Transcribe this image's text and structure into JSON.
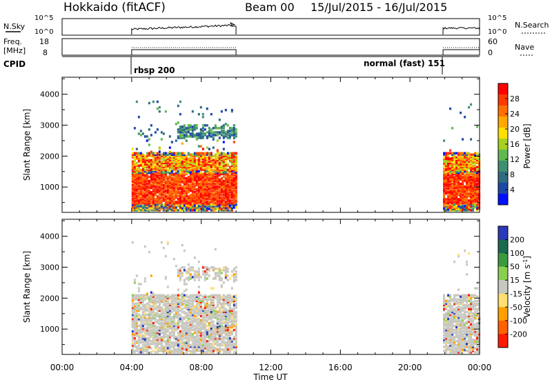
{
  "header": {
    "title": "Hokkaido (fitACF)",
    "beam": "Beam 00",
    "dates": "15/Jul/2015 - 16/Jul/2015"
  },
  "top_panels": {
    "nsky_label": "N.Sky",
    "nsky_ticks": [
      "10^5",
      "10^0"
    ],
    "nsearch_label": "N.Search",
    "nsearch_ticks": [
      "10^5",
      "10^0"
    ],
    "freq_label_1": "Freq.",
    "freq_label_2": "[MHz]",
    "freq_ticks": [
      "18",
      "8"
    ],
    "nave_label": "Nave",
    "nave_ticks": [
      "60",
      "0"
    ],
    "cpid_label": "CPID",
    "cpid_1": "rbsp 200",
    "cpid_2": "normal (fast) 151"
  },
  "chart_data": [
    {
      "type": "heatmap",
      "title": "",
      "ylabel": "Slant Range [km]",
      "xlabel": "",
      "yticks": [
        1000,
        2000,
        3000,
        4000
      ],
      "ylim": [
        180,
        4550
      ],
      "xlim": [
        0,
        24
      ],
      "colorbar_label": "Power [dB]",
      "colorbar_ticks": [
        "28",
        "24",
        "20",
        "16",
        "12",
        "8",
        "4"
      ],
      "colorbar_colors": [
        "#ff0000",
        "#ff3a00",
        "#ff7000",
        "#ffa800",
        "#ffe000",
        "#a8d020",
        "#60b850",
        "#3e9070",
        "#2e6c80",
        "#1c48a8",
        "#0010ff"
      ],
      "data_windows_hours": [
        [
          4.0,
          10.0
        ],
        [
          21.9,
          24.0
        ]
      ],
      "grid": false
    },
    {
      "type": "heatmap",
      "title": "",
      "ylabel": "Slant Range [km]",
      "xlabel": "Time UT",
      "yticks": [
        1000,
        2000,
        3000,
        4000
      ],
      "ylim": [
        180,
        4550
      ],
      "xlim": [
        0,
        24
      ],
      "xtick_labels": [
        "00:00",
        "04:00",
        "08:00",
        "12:00",
        "16:00",
        "20:00",
        "00:00"
      ],
      "colorbar_label": "Velocity [m s^-1]",
      "colorbar_ticks": [
        "200",
        "100",
        "50",
        "15",
        "-15",
        "-50",
        "-100",
        "-200"
      ],
      "colorbar_colors": [
        "#2a3ab8",
        "#1a6a50",
        "#3a9a40",
        "#8ad050",
        "#c8c8c0",
        "#ffe070",
        "#ffa000",
        "#ff6000",
        "#ff1a00"
      ],
      "data_windows_hours": [
        [
          4.0,
          10.0
        ],
        [
          21.9,
          24.0
        ]
      ],
      "grid": false
    }
  ]
}
